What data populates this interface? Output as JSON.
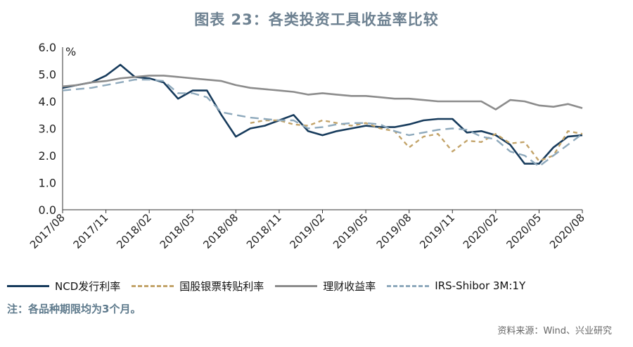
{
  "chart_data": {
    "type": "line",
    "title": "图表 23：各类投资工具收益率比较",
    "unit": "%",
    "ylim": [
      0,
      6
    ],
    "yticks": [
      "0.0",
      "1.0",
      "2.0",
      "3.0",
      "4.0",
      "5.0",
      "6.0"
    ],
    "xlim": [
      "2017/08",
      "2020/08"
    ],
    "xticks": [
      "2017/08",
      "2017/11",
      "2018/02",
      "2018/05",
      "2018/08",
      "2018/11",
      "2019/02",
      "2019/05",
      "2019/08",
      "2019/11",
      "2020/02",
      "2020/05",
      "2020/08"
    ],
    "grid": false,
    "legend": "bottom",
    "series": [
      {
        "name": "NCD发行利率",
        "color": "#173b5c",
        "style": "solid",
        "points": [
          [
            "2017/08",
            4.5
          ],
          [
            "2017/09",
            4.6
          ],
          [
            "2017/10",
            4.7
          ],
          [
            "2017/11",
            4.95
          ],
          [
            "2017/12",
            5.35
          ],
          [
            "2018/01",
            4.9
          ],
          [
            "2018/02",
            4.85
          ],
          [
            "2018/03",
            4.7
          ],
          [
            "2018/04",
            4.1
          ],
          [
            "2018/05",
            4.4
          ],
          [
            "2018/06",
            4.4
          ],
          [
            "2018/07",
            3.5
          ],
          [
            "2018/08",
            2.7
          ],
          [
            "2018/09",
            3.0
          ],
          [
            "2018/10",
            3.1
          ],
          [
            "2018/11",
            3.3
          ],
          [
            "2018/12",
            3.5
          ],
          [
            "2019/01",
            2.9
          ],
          [
            "2019/02",
            2.75
          ],
          [
            "2019/03",
            2.9
          ],
          [
            "2019/04",
            3.0
          ],
          [
            "2019/05",
            3.1
          ],
          [
            "2019/06",
            3.05
          ],
          [
            "2019/07",
            3.05
          ],
          [
            "2019/08",
            3.15
          ],
          [
            "2019/09",
            3.3
          ],
          [
            "2019/10",
            3.35
          ],
          [
            "2019/11",
            3.35
          ],
          [
            "2019/12",
            2.85
          ],
          [
            "2020/01",
            2.9
          ],
          [
            "2020/02",
            2.75
          ],
          [
            "2020/03",
            2.4
          ],
          [
            "2020/04",
            1.7
          ],
          [
            "2020/05",
            1.7
          ],
          [
            "2020/06",
            2.3
          ],
          [
            "2020/07",
            2.7
          ],
          [
            "2020/08",
            2.75
          ]
        ]
      },
      {
        "name": "国股银票转贴利率",
        "color": "#c3a46a",
        "style": "dotted",
        "points": [
          [
            "2018/09",
            3.2
          ],
          [
            "2018/10",
            3.3
          ],
          [
            "2018/11",
            3.3
          ],
          [
            "2018/12",
            3.15
          ],
          [
            "2019/01",
            3.1
          ],
          [
            "2019/02",
            3.3
          ],
          [
            "2019/03",
            3.2
          ],
          [
            "2019/04",
            3.1
          ],
          [
            "2019/05",
            3.2
          ],
          [
            "2019/06",
            3.0
          ],
          [
            "2019/07",
            2.9
          ],
          [
            "2019/08",
            2.3
          ],
          [
            "2019/09",
            2.7
          ],
          [
            "2019/10",
            2.8
          ],
          [
            "2019/11",
            2.15
          ],
          [
            "2019/12",
            2.55
          ],
          [
            "2020/01",
            2.5
          ],
          [
            "2020/02",
            2.8
          ],
          [
            "2020/03",
            2.45
          ],
          [
            "2020/04",
            2.5
          ],
          [
            "2020/05",
            1.8
          ],
          [
            "2020/06",
            2.0
          ],
          [
            "2020/07",
            2.9
          ],
          [
            "2020/08",
            2.8
          ]
        ]
      },
      {
        "name": "理财收益率",
        "color": "#8c8c8c",
        "style": "solid",
        "points": [
          [
            "2017/08",
            4.55
          ],
          [
            "2017/09",
            4.6
          ],
          [
            "2017/10",
            4.7
          ],
          [
            "2017/11",
            4.75
          ],
          [
            "2017/12",
            4.85
          ],
          [
            "2018/01",
            4.9
          ],
          [
            "2018/02",
            4.95
          ],
          [
            "2018/03",
            4.95
          ],
          [
            "2018/04",
            4.9
          ],
          [
            "2018/05",
            4.85
          ],
          [
            "2018/06",
            4.8
          ],
          [
            "2018/07",
            4.75
          ],
          [
            "2018/08",
            4.6
          ],
          [
            "2018/09",
            4.5
          ],
          [
            "2018/10",
            4.45
          ],
          [
            "2018/11",
            4.4
          ],
          [
            "2018/12",
            4.35
          ],
          [
            "2019/01",
            4.25
          ],
          [
            "2019/02",
            4.3
          ],
          [
            "2019/03",
            4.25
          ],
          [
            "2019/04",
            4.2
          ],
          [
            "2019/05",
            4.2
          ],
          [
            "2019/06",
            4.15
          ],
          [
            "2019/07",
            4.1
          ],
          [
            "2019/08",
            4.1
          ],
          [
            "2019/09",
            4.05
          ],
          [
            "2019/10",
            4.0
          ],
          [
            "2019/11",
            4.0
          ],
          [
            "2019/12",
            4.0
          ],
          [
            "2020/01",
            4.0
          ],
          [
            "2020/02",
            3.7
          ],
          [
            "2020/03",
            4.05
          ],
          [
            "2020/04",
            4.0
          ],
          [
            "2020/05",
            3.85
          ],
          [
            "2020/06",
            3.8
          ],
          [
            "2020/07",
            3.9
          ],
          [
            "2020/08",
            3.75
          ]
        ]
      },
      {
        "name": "IRS-Shibor 3M:1Y",
        "color": "#8ea9bc",
        "style": "dashed",
        "points": [
          [
            "2017/08",
            4.4
          ],
          [
            "2017/09",
            4.45
          ],
          [
            "2017/10",
            4.5
          ],
          [
            "2017/11",
            4.6
          ],
          [
            "2017/12",
            4.7
          ],
          [
            "2018/01",
            4.8
          ],
          [
            "2018/02",
            4.8
          ],
          [
            "2018/03",
            4.75
          ],
          [
            "2018/04",
            4.3
          ],
          [
            "2018/05",
            4.3
          ],
          [
            "2018/06",
            4.15
          ],
          [
            "2018/07",
            3.6
          ],
          [
            "2018/08",
            3.5
          ],
          [
            "2018/09",
            3.4
          ],
          [
            "2018/10",
            3.35
          ],
          [
            "2018/11",
            3.3
          ],
          [
            "2018/12",
            3.3
          ],
          [
            "2019/01",
            3.0
          ],
          [
            "2019/02",
            3.05
          ],
          [
            "2019/03",
            3.15
          ],
          [
            "2019/04",
            3.2
          ],
          [
            "2019/05",
            3.2
          ],
          [
            "2019/06",
            3.15
          ],
          [
            "2019/07",
            2.9
          ],
          [
            "2019/08",
            2.75
          ],
          [
            "2019/09",
            2.85
          ],
          [
            "2019/10",
            2.95
          ],
          [
            "2019/11",
            3.0
          ],
          [
            "2019/12",
            2.95
          ],
          [
            "2020/01",
            2.7
          ],
          [
            "2020/02",
            2.6
          ],
          [
            "2020/03",
            2.15
          ],
          [
            "2020/04",
            2.0
          ],
          [
            "2020/05",
            1.6
          ],
          [
            "2020/06",
            2.0
          ],
          [
            "2020/07",
            2.4
          ],
          [
            "2020/08",
            2.8
          ]
        ]
      }
    ]
  },
  "note": "注：各品种期限均为3个月。",
  "source": "资料来源：Wind、兴业研究"
}
